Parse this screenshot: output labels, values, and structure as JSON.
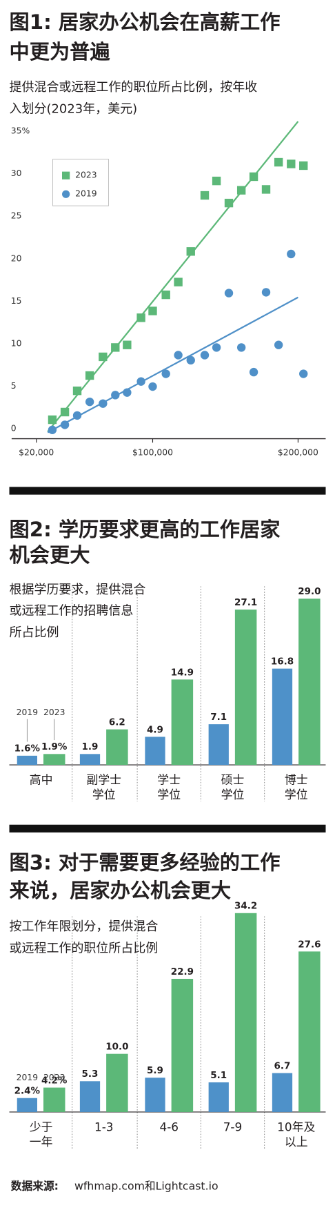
{
  "chart_data": [
    {
      "type": "scatter",
      "title": [
        "图1: 居家办公机会在高薪工作",
        "中更为普遍"
      ],
      "subtitle": [
        "提供混合或远程工作的职位所占比例，按年收",
        "入划分(2023年，美元)"
      ],
      "xlim": [
        3000,
        219000
      ],
      "xticks": [
        {
          "value": 20000,
          "label": "$20,000"
        },
        {
          "value": 100000,
          "label": "$100,000"
        },
        {
          "value": 200000,
          "label": "$200,000"
        }
      ],
      "ylim": [
        0,
        35
      ],
      "yticks": [
        0,
        5,
        10,
        15,
        20,
        25,
        30,
        {
          "value": 35,
          "label": "35%"
        }
      ],
      "series": [
        {
          "name": "2023",
          "color": "#5cb878",
          "marker": "square",
          "x": [
            31000,
            39600,
            48100,
            56700,
            65800,
            74300,
            82400,
            92000,
            100000,
            109100,
            117600,
            126200,
            135800,
            143900,
            152400,
            161000,
            169500,
            178000,
            186600,
            195200,
            203700
          ],
          "values": [
            1.6,
            2.5,
            5.0,
            6.8,
            9.0,
            10.1,
            10.4,
            13.6,
            14.4,
            16.3,
            17.8,
            21.4,
            28.0,
            29.7,
            27.1,
            28.6,
            30.2,
            28.7,
            31.9,
            31.7,
            31.5
          ],
          "trend": {
            "x": [
              27800,
              200000
            ],
            "y": [
              0.2,
              36.7
            ]
          }
        },
        {
          "name": "2019",
          "color": "#4f90c8",
          "marker": "circle",
          "x": [
            31000,
            39600,
            48100,
            56700,
            65800,
            74300,
            82400,
            92000,
            100000,
            109100,
            117600,
            126200,
            135800,
            143900,
            152400,
            161000,
            169500,
            178000,
            186600,
            195200,
            203700
          ],
          "values": [
            0.4,
            1.0,
            2.1,
            3.7,
            3.5,
            4.5,
            4.8,
            6.1,
            5.5,
            7.0,
            9.2,
            8.6,
            9.2,
            10.1,
            16.5,
            10.1,
            7.2,
            16.6,
            10.4,
            21.1,
            7.0
          ],
          "trend": {
            "x": [
              27800,
              200000
            ],
            "y": [
              0.1,
              16.0
            ]
          }
        }
      ]
    },
    {
      "type": "bar",
      "title": [
        "图2: 学历要求更高的工作居家",
        "机会更大"
      ],
      "subtitle": [
        "根据学历要求，提供混合",
        "或远程工作的招聘信息",
        "所占比例"
      ],
      "categories": [
        [
          "高中"
        ],
        [
          "副学士",
          "学位"
        ],
        [
          "学士",
          "学位"
        ],
        [
          "硕士",
          "学位"
        ],
        [
          "博士",
          "学位"
        ]
      ],
      "series": [
        {
          "name": "2019",
          "color": "#4e91c9",
          "values": [
            1.6,
            1.9,
            4.9,
            7.1,
            16.8
          ],
          "value_labels": [
            "1.6%",
            "1.9",
            "4.9",
            "7.1",
            "16.8"
          ]
        },
        {
          "name": "2023",
          "color": "#5cb878",
          "values": [
            1.9,
            6.2,
            14.9,
            27.1,
            29.0
          ],
          "value_labels": [
            "1.9%",
            "6.2",
            "14.9",
            "27.1",
            "29.0"
          ]
        }
      ]
    },
    {
      "type": "bar",
      "title": [
        "图3: 对于需要更多经验的工作",
        "来说，居家办公机会更大"
      ],
      "subtitle": [
        "按工作年限划分，提供混合",
        "或远程工作的职位所占比例"
      ],
      "categories": [
        [
          "少于",
          "一年"
        ],
        [
          "1-3"
        ],
        [
          "4-6"
        ],
        [
          "7-9"
        ],
        [
          "10年及",
          "以上"
        ]
      ],
      "series": [
        {
          "name": "2019",
          "color": "#4e91c9",
          "values": [
            2.4,
            5.3,
            5.9,
            5.1,
            6.7
          ],
          "value_labels": [
            "2.4%",
            "5.3",
            "5.9",
            "5.1",
            "6.7"
          ]
        },
        {
          "name": "2023",
          "color": "#5cb878",
          "values": [
            4.2,
            10.0,
            22.9,
            34.2,
            27.6
          ],
          "value_labels": [
            "4.2%",
            "10.0",
            "22.9",
            "34.2",
            "27.6"
          ]
        }
      ]
    }
  ],
  "source_label": "数据来源:",
  "source": "wfhmap.com和Lightcast.io"
}
